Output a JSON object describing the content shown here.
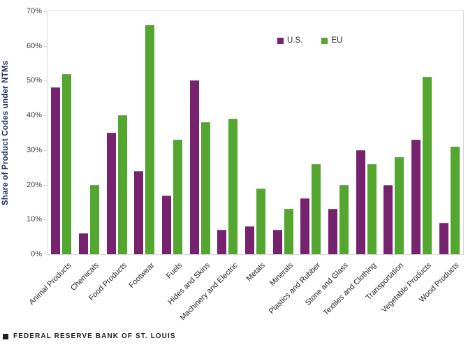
{
  "chart_data": {
    "type": "bar",
    "title": "",
    "xlabel": "",
    "ylabel": "Share of Product Codes under NTMs",
    "ylim": [
      0,
      70
    ],
    "yticks": [
      0,
      10,
      20,
      30,
      40,
      50,
      60,
      70
    ],
    "ytick_format": "percent",
    "grid": false,
    "legend_position": "top-center-inside",
    "categories": [
      "Animal Products",
      "Chemicals",
      "Food Products",
      "Footwear",
      "Fuels",
      "Hides and Skins",
      "Machinery and Electric",
      "Metals",
      "Minerals",
      "Plastics and Rubber",
      "Stone and Glass",
      "Textiles and Clothing",
      "Transportation",
      "Vegetable Products",
      "Wood Products"
    ],
    "series": [
      {
        "name": "U.S.",
        "color": "#76226F",
        "values": [
          48,
          6,
          35,
          24,
          17,
          50,
          7,
          8,
          7,
          16,
          13,
          30,
          20,
          33,
          9
        ]
      },
      {
        "name": "EU",
        "color": "#53A62E",
        "values": [
          52,
          20,
          40,
          66,
          33,
          38,
          39,
          19,
          13,
          26,
          20,
          26,
          28,
          51,
          31
        ]
      }
    ]
  },
  "colors": {
    "us_bar": "#76226F",
    "eu_bar": "#53A62E",
    "axis_border": "#d9d9d9",
    "tick_label": "#404040",
    "y_title": "#1f3055",
    "footer": "#231f20"
  },
  "footer": {
    "text": "FEDERAL RESERVE BANK OF ST. LOUIS"
  }
}
